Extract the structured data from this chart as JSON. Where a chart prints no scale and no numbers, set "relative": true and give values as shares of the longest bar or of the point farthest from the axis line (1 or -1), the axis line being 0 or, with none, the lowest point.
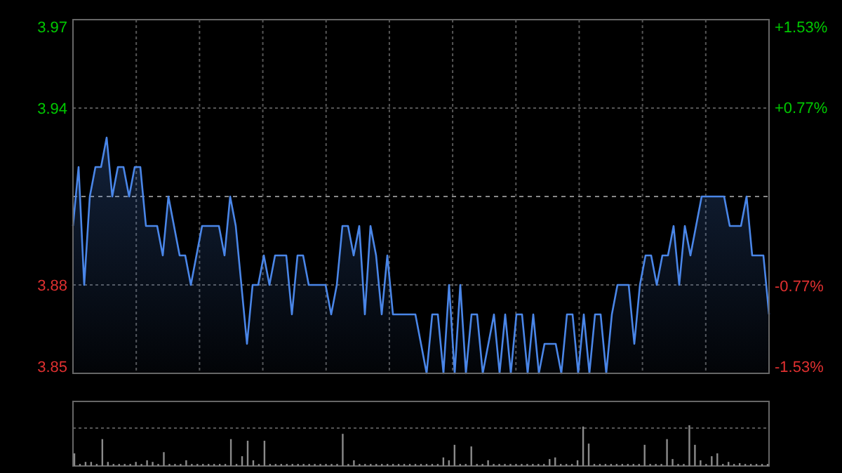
{
  "chart_data": [
    {
      "type": "area",
      "categories": [
        null,
        null,
        null,
        null,
        null,
        null,
        null,
        null,
        null,
        null,
        null,
        null,
        null,
        null,
        null,
        null,
        null,
        null,
        null,
        null,
        null,
        null,
        null,
        null,
        null,
        null,
        null,
        null,
        null,
        null,
        null,
        null,
        null,
        null,
        null,
        null,
        null,
        null,
        null,
        null,
        null,
        null,
        null,
        null,
        null,
        null,
        null,
        null,
        null,
        null,
        null,
        null,
        null,
        null,
        null,
        null,
        null,
        null,
        null,
        null,
        null,
        null,
        null,
        null,
        null,
        null,
        null,
        null,
        null,
        null,
        null,
        null,
        null,
        null,
        null,
        null,
        null,
        null,
        null,
        null,
        null,
        null,
        null,
        null,
        null,
        null,
        null,
        null,
        null,
        null,
        null,
        null,
        null,
        null,
        null,
        null,
        null,
        null,
        null,
        null,
        null,
        null,
        null,
        null,
        null,
        null,
        null,
        null,
        null,
        null,
        null,
        null,
        null,
        null,
        null,
        null,
        null,
        null,
        null,
        null,
        null,
        null,
        null,
        null,
        null
      ],
      "series": [
        {
          "color": "#4a86e8",
          "values": [
            3.9,
            3.92,
            3.88,
            3.91,
            3.92,
            3.92,
            3.93,
            3.91,
            3.92,
            3.92,
            3.91,
            3.92,
            3.92,
            3.9,
            3.9,
            3.9,
            3.89,
            3.91,
            3.9,
            3.89,
            3.89,
            3.88,
            3.89,
            3.9,
            3.9,
            3.9,
            3.9,
            3.89,
            3.91,
            3.9,
            3.88,
            3.86,
            3.88,
            3.88,
            3.89,
            3.88,
            3.89,
            3.89,
            3.89,
            3.87,
            3.89,
            3.89,
            3.88,
            3.88,
            3.88,
            3.88,
            3.87,
            3.88,
            3.9,
            3.9,
            3.89,
            3.9,
            3.87,
            3.9,
            3.89,
            3.87,
            3.89,
            3.87,
            3.87,
            3.87,
            3.87,
            3.87,
            3.86,
            3.85,
            3.87,
            3.87,
            3.85,
            3.88,
            3.85,
            3.88,
            3.85,
            3.87,
            3.87,
            3.85,
            3.86,
            3.87,
            3.85,
            3.87,
            3.85,
            3.87,
            3.87,
            3.85,
            3.87,
            3.85,
            3.86,
            3.86,
            3.86,
            3.85,
            3.87,
            3.87,
            3.85,
            3.87,
            3.85,
            3.87,
            3.87,
            3.85,
            3.87,
            3.88,
            3.88,
            3.88,
            3.86,
            3.88,
            3.89,
            3.89,
            3.88,
            3.89,
            3.89,
            3.9,
            3.88,
            3.9,
            3.89,
            3.9,
            3.91,
            3.91,
            3.91,
            3.91,
            3.91,
            3.9,
            3.9,
            3.9,
            3.91,
            3.89,
            3.89,
            3.89,
            3.87
          ]
        }
      ],
      "ylim": [
        3.85,
        3.97
      ],
      "yticks": [
        3.85,
        3.88,
        3.94,
        3.97
      ],
      "y2lim": [
        -1.53,
        1.53
      ],
      "y2ticks": [
        {
          "value": -1.53,
          "label": "-1.53%"
        },
        {
          "value": -0.77,
          "label": "-0.77%"
        },
        {
          "value": 0.77,
          "label": "+0.77%"
        },
        {
          "value": 1.53,
          "label": "+1.53%"
        }
      ],
      "ref_lines": [
        {
          "axis": "y",
          "value": 3.91,
          "color": "#888888",
          "line_style": "dashed"
        }
      ],
      "grid": true,
      "line_style": "solid"
    },
    {
      "type": "bar",
      "relative": true,
      "color": "#8a8a8a",
      "grid": true,
      "categories": [
        null,
        null,
        null,
        null,
        null,
        null,
        null,
        null,
        null,
        null,
        null,
        null,
        null,
        null,
        null,
        null,
        null,
        null,
        null,
        null,
        null,
        null,
        null,
        null,
        null,
        null,
        null,
        null,
        null,
        null,
        null,
        null,
        null,
        null,
        null,
        null,
        null,
        null,
        null,
        null,
        null,
        null,
        null,
        null,
        null,
        null,
        null,
        null,
        null,
        null,
        null,
        null,
        null,
        null,
        null,
        null,
        null,
        null,
        null,
        null,
        null,
        null,
        null,
        null,
        null,
        null,
        null,
        null,
        null,
        null,
        null,
        null,
        null,
        null,
        null,
        null,
        null,
        null,
        null,
        null,
        null,
        null,
        null,
        null,
        null,
        null,
        null,
        null,
        null,
        null,
        null,
        null,
        null,
        null,
        null,
        null,
        null,
        null,
        null,
        null,
        null,
        null,
        null,
        null,
        null,
        null,
        null,
        null,
        null,
        null,
        null,
        null,
        null,
        null,
        null,
        null,
        null,
        null,
        null,
        null,
        null,
        null,
        null,
        null,
        null
      ],
      "values": [
        0.31,
        0.05,
        0.1,
        0.1,
        0.05,
        0.66,
        0.1,
        0.05,
        0.05,
        0.05,
        0.05,
        0.1,
        0.05,
        0.14,
        0.1,
        0.05,
        0.34,
        0.05,
        0.05,
        0.05,
        0.14,
        0.05,
        0.05,
        0.05,
        0.05,
        0.05,
        0.05,
        0.05,
        0.66,
        0.05,
        0.24,
        0.62,
        0.14,
        0.05,
        0.62,
        0.05,
        0.05,
        0.05,
        0.05,
        0.05,
        0.05,
        0.05,
        0.05,
        0.05,
        0.05,
        0.05,
        0.05,
        0.05,
        0.79,
        0.05,
        0.14,
        0.05,
        0.05,
        0.05,
        0.05,
        0.05,
        0.05,
        0.05,
        0.05,
        0.05,
        0.05,
        0.05,
        0.05,
        0.05,
        0.05,
        0.05,
        0.21,
        0.14,
        0.52,
        0.05,
        0.05,
        0.48,
        0.05,
        0.05,
        0.14,
        0.05,
        0.05,
        0.05,
        0.05,
        0.05,
        0.05,
        0.05,
        0.05,
        0.05,
        0.05,
        0.17,
        0.21,
        0.05,
        0.05,
        0.05,
        0.14,
        0.97,
        0.55,
        0.05,
        0.05,
        0.05,
        0.05,
        0.05,
        0.05,
        0.05,
        0.05,
        0.05,
        0.52,
        0.05,
        0.05,
        0.05,
        0.66,
        0.17,
        0.05,
        0.05,
        1.0,
        0.52,
        0.14,
        0.05,
        0.24,
        0.31,
        0.05,
        0.1,
        0.05,
        0.07,
        0.05,
        0.05,
        0.05,
        0.05,
        0.05
      ]
    }
  ]
}
